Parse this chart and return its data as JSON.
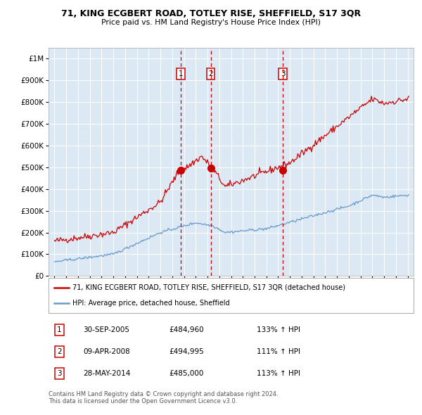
{
  "title": "71, KING ECGBERT ROAD, TOTLEY RISE, SHEFFIELD, S17 3QR",
  "subtitle": "Price paid vs. HM Land Registry's House Price Index (HPI)",
  "legend_line1": "71, KING ECGBERT ROAD, TOTLEY RISE, SHEFFIELD, S17 3QR (detached house)",
  "legend_line2": "HPI: Average price, detached house, Sheffield",
  "footer1": "Contains HM Land Registry data © Crown copyright and database right 2024.",
  "footer2": "This data is licensed under the Open Government Licence v3.0.",
  "transactions": [
    {
      "label": "1",
      "date": 2005.75,
      "price": 484960,
      "pct": "133% ↑ HPI"
    },
    {
      "label": "2",
      "date": 2008.27,
      "price": 494995,
      "pct": "111% ↑ HPI"
    },
    {
      "label": "3",
      "date": 2014.41,
      "price": 485000,
      "pct": "113% ↑ HPI"
    }
  ],
  "transaction_dates_str": [
    "30-SEP-2005",
    "09-APR-2008",
    "28-MAY-2014"
  ],
  "transaction_prices_str": [
    "£484,960",
    "£494,995",
    "£485,000"
  ],
  "background_color": "#dce9f5",
  "red_line_color": "#cc0000",
  "blue_line_color": "#6699cc",
  "dashed_color": "#cc0000",
  "grid_color": "#ffffff",
  "ylim": [
    0,
    1050000
  ],
  "xlim": [
    1994.5,
    2025.5
  ]
}
